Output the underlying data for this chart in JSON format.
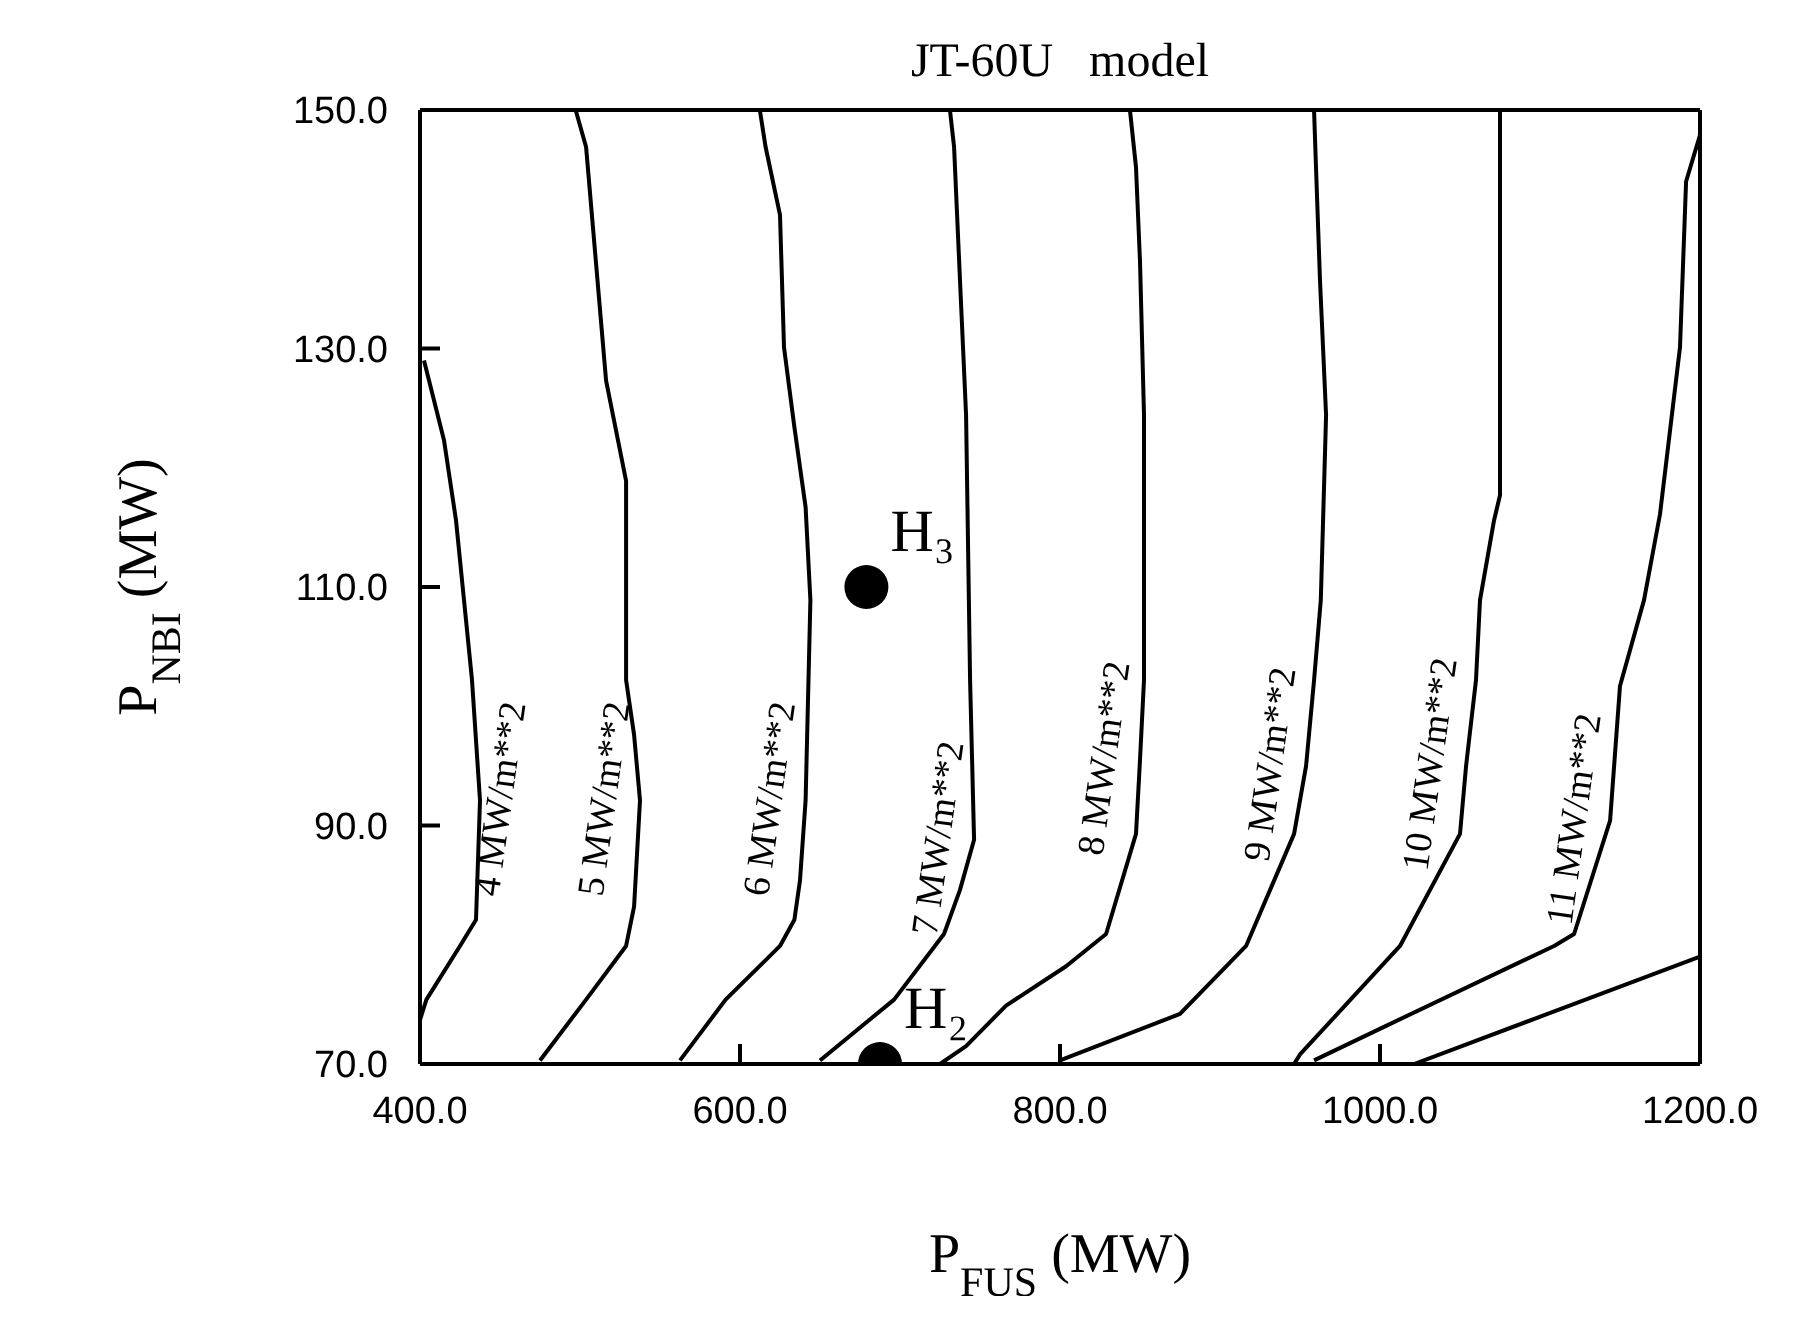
{
  "chart_data": {
    "type": "line",
    "title": "JT-60U   model",
    "xlabel": "P$_{FUS}$ (MW)",
    "ylabel": "P$_{NBI}$ (MW)",
    "xlim": [
      400,
      1200
    ],
    "ylim": [
      70,
      150
    ],
    "xticks": [
      {
        "value": 400,
        "label": "400.0"
      },
      {
        "value": 600,
        "label": "600.0"
      },
      {
        "value": 800,
        "label": "800.0"
      },
      {
        "value": 1000,
        "label": "1000.0"
      },
      {
        "value": 1200,
        "label": "1200.0"
      }
    ],
    "yticks": [
      {
        "value": 70,
        "label": "70.0"
      },
      {
        "value": 90,
        "label": "90.0"
      },
      {
        "value": 110,
        "label": "110.0"
      },
      {
        "value": 130,
        "label": "130.0"
      },
      {
        "value": 150,
        "label": "150.0"
      }
    ],
    "grid": false,
    "legend": false,
    "marker": "none",
    "line_style": "solid",
    "series": [
      {
        "name": "4 MW/m**2",
        "color": "#000000",
        "x": [
          402.5,
          415,
          422.5,
          427.5,
          432.5,
          437.5,
          435,
          425,
          404,
          400
        ],
        "values": [
          129,
          122.3,
          115.6,
          108.9,
          102.2,
          92.1,
          82.1,
          79.9,
          75.4,
          73.7
        ]
      },
      {
        "name": "5 MW/m**2",
        "color": "#000000",
        "x": [
          497.5,
          503.8,
          516.3,
          528.8,
          528.8,
          533.8,
          537.5,
          533.8,
          528.8,
          503.8,
          475
        ],
        "values": [
          149.9,
          146.9,
          127.3,
          118.9,
          102.2,
          97.6,
          92.1,
          83.2,
          79.9,
          75.4,
          70.3
        ]
      },
      {
        "name": "6 MW/m**2",
        "color": "#000000",
        "x": [
          612.5,
          616,
          625,
          627.5,
          634,
          641,
          644,
          641,
          637.5,
          634,
          625,
          591,
          562.5
        ],
        "values": [
          149.9,
          146.9,
          141.2,
          130.1,
          123.4,
          116.7,
          108.9,
          92.1,
          85.4,
          82.1,
          79.9,
          75.4,
          70.3
        ]
      },
      {
        "name": "7 MW/m**2",
        "color": "#000000",
        "x": [
          731.3,
          733.8,
          737.5,
          741.3,
          743.8,
          746.3,
          737.5,
          727.5,
          696.3,
          650
        ],
        "values": [
          149.9,
          146.9,
          135.7,
          124.4,
          102.2,
          88.8,
          84.6,
          80.9,
          75.4,
          70.3
        ]
      },
      {
        "name": "8 MW/m**2",
        "color": "#000000",
        "x": [
          843.8,
          847.5,
          850,
          852.5,
          852.5,
          850,
          847.5,
          828.8,
          803.8,
          766.3,
          741.3,
          725
        ],
        "values": [
          149.9,
          145.2,
          137.3,
          124.4,
          102.2,
          95.5,
          89.3,
          80.9,
          78.2,
          74.9,
          71.5,
          70
        ]
      },
      {
        "name": "9 MW/m**2",
        "color": "#000000",
        "x": [
          958.8,
          960,
          962.5,
          966.3,
          963,
          958.8,
          953.8,
          946.3,
          916.3,
          875,
          800
        ],
        "values": [
          149.9,
          145.2,
          135.7,
          124.4,
          108.9,
          102.2,
          95,
          89.3,
          79.9,
          74.2,
          70.3
        ]
      },
      {
        "name": "10 MW/m**2",
        "color": "#000000",
        "x": [
          1075,
          1075,
          1071.3,
          1062.5,
          1060,
          1053.8,
          1050,
          1012.5,
          950,
          946.3
        ],
        "values": [
          149.9,
          117.7,
          115.6,
          108.9,
          102.2,
          95,
          89.3,
          79.9,
          70.8,
          70
        ]
      },
      {
        "name": "11 MW/m**2",
        "color": "#000000",
        "x": [
          1200,
          1191.3,
          1187.5,
          1175,
          1165,
          1150,
          1143.8,
          1121.3,
          1108.8,
          1003.8,
          958.8
        ],
        "values": [
          147.9,
          144,
          130.1,
          116.1,
          108.9,
          101.7,
          90.4,
          80.9,
          79.9,
          73.2,
          70.3
        ]
      },
      {
        "color": "#000000",
        "x": [
          1200,
          1021.3
        ],
        "values": [
          79,
          70
        ]
      },
      {
        "type": "scatter",
        "marker": "circle",
        "color": "#000000",
        "x": [
          679,
          687.5
        ],
        "values": [
          110,
          70
        ]
      }
    ],
    "annotations": [
      {
        "text": "H₃",
        "x": 679,
        "y": 110
      },
      {
        "text": "H₂",
        "x": 687.5,
        "y": 70
      }
    ]
  }
}
